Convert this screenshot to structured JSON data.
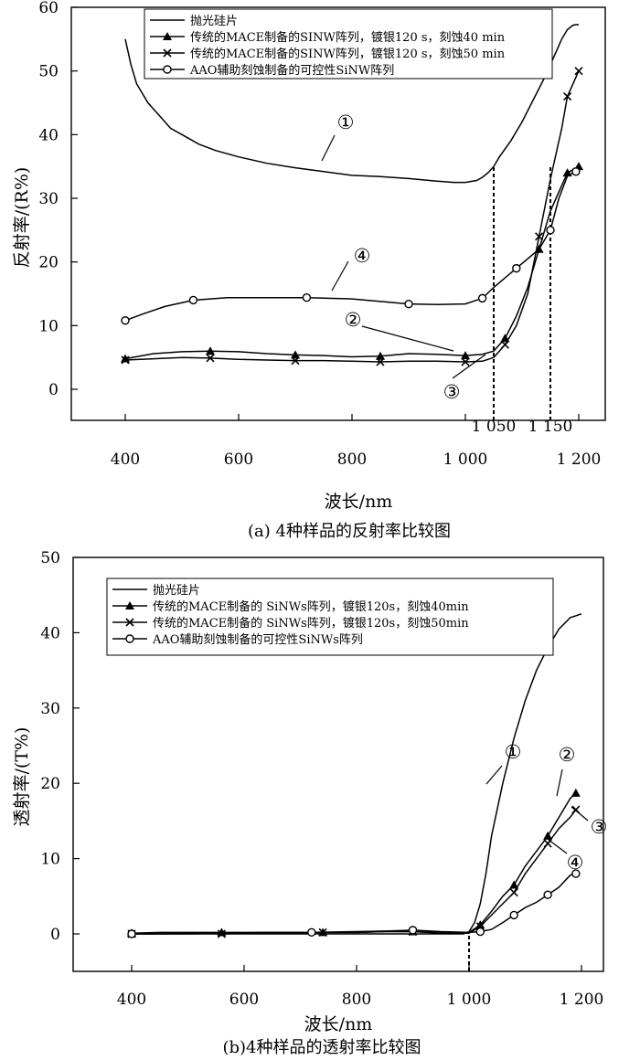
{
  "chart_data": [
    {
      "type": "line",
      "caption": "(a) 4种样品的反射率比较图",
      "xlabel": "波长/nm",
      "ylabel": "反射率/(R%)",
      "xlim": [
        340,
        1215
      ],
      "ylim": [
        -5,
        60
      ],
      "xticks": [
        {
          "v": 400,
          "label": "400"
        },
        {
          "v": 600,
          "label": "600"
        },
        {
          "v": 800,
          "label": "800"
        },
        {
          "v": 1000,
          "label": "1 000"
        },
        {
          "v": 1200,
          "label": "1 200"
        }
      ],
      "xticks_upper": [
        {
          "v": 1050,
          "label": "1 050"
        },
        {
          "v": 1150,
          "label": "1 150"
        }
      ],
      "yticks": [
        0,
        10,
        20,
        30,
        40,
        50,
        60
      ],
      "vlines": [
        1050,
        1150
      ],
      "legend_position": "top",
      "series": [
        {
          "name": "抛光硅片",
          "marker": "none",
          "x": [
            400,
            410,
            420,
            440,
            460,
            480,
            500,
            530,
            560,
            600,
            650,
            700,
            750,
            800,
            850,
            900,
            950,
            980,
            1000,
            1020,
            1030,
            1040,
            1050,
            1060,
            1080,
            1100,
            1120,
            1140,
            1150,
            1160,
            1170,
            1180,
            1190,
            1200
          ],
          "y": [
            55,
            51,
            48,
            45,
            43,
            41,
            40,
            38.5,
            37.5,
            36.5,
            35.5,
            34.8,
            34.2,
            33.6,
            33.4,
            33.1,
            32.7,
            32.5,
            32.5,
            32.8,
            33.3,
            34,
            35,
            36.5,
            39,
            42,
            45.5,
            49,
            51,
            53,
            55,
            56.5,
            57.2,
            57.3
          ]
        },
        {
          "name": "传统的MACE制备的SINW阵列，镀银120 s，刻蚀40 min",
          "marker": "triangle",
          "x": [
            400,
            450,
            500,
            550,
            600,
            650,
            700,
            750,
            800,
            850,
            900,
            950,
            1000,
            1030,
            1050,
            1070,
            1090,
            1110,
            1130,
            1150,
            1170,
            1180,
            1190,
            1200
          ],
          "y": [
            4.8,
            5.6,
            5.9,
            6,
            5.9,
            5.6,
            5.4,
            5.3,
            5.1,
            5.2,
            5.6,
            5.5,
            5.3,
            5.5,
            6,
            8,
            11.5,
            16,
            22,
            28,
            32,
            34,
            34.5,
            35
          ]
        },
        {
          "name": "传统的MACE制备的SINW阵列，镀银120 s，刻蚀50 min",
          "marker": "x",
          "x": [
            400,
            450,
            500,
            550,
            600,
            650,
            700,
            750,
            800,
            850,
            900,
            950,
            1000,
            1030,
            1050,
            1070,
            1090,
            1110,
            1130,
            1150,
            1170,
            1180,
            1190,
            1200
          ],
          "y": [
            4.6,
            4.8,
            5,
            4.9,
            4.7,
            4.6,
            4.5,
            4.5,
            4.4,
            4.3,
            4.4,
            4.4,
            4.3,
            4.4,
            5,
            7,
            10,
            15,
            24,
            33,
            41,
            46,
            48,
            50
          ]
        },
        {
          "name": "AAO辅助刻蚀制备的可控性SiNW阵列",
          "marker": "circle",
          "x": [
            400,
            430,
            470,
            520,
            580,
            650,
            720,
            800,
            850,
            900,
            950,
            1000,
            1030,
            1050,
            1070,
            1090,
            1110,
            1130,
            1150,
            1165,
            1180,
            1195
          ],
          "y": [
            10.8,
            11.8,
            13,
            14,
            14.4,
            14.4,
            14.4,
            14.2,
            13.8,
            13.4,
            13.3,
            13.4,
            14.3,
            16,
            17.5,
            19,
            20.5,
            22,
            25,
            30,
            33.5,
            34.2
          ]
        }
      ]
    },
    {
      "type": "line",
      "caption": "(b)4种样品的透射率比较图",
      "xlabel": "波长/nm",
      "ylabel": "透射率/(T%)",
      "xlim": [
        340,
        1215
      ],
      "ylim": [
        -5,
        50
      ],
      "xticks": [
        {
          "v": 400,
          "label": "400"
        },
        {
          "v": 600,
          "label": "600"
        },
        {
          "v": 800,
          "label": "800"
        },
        {
          "v": 1000,
          "label": "1 000"
        },
        {
          "v": 1200,
          "label": "1 200"
        }
      ],
      "yticks": [
        0,
        10,
        20,
        30,
        40,
        50
      ],
      "vlines": [
        1000
      ],
      "legend_position": "top",
      "series": [
        {
          "name": "抛光硅片",
          "marker": "none",
          "x": [
            400,
            600,
            800,
            950,
            990,
            1000,
            1010,
            1020,
            1030,
            1040,
            1060,
            1080,
            1100,
            1120,
            1140,
            1160,
            1180,
            1200
          ],
          "y": [
            0,
            0,
            0,
            0,
            0,
            0.3,
            1.5,
            4,
            8,
            13,
            20,
            26,
            31,
            35,
            38,
            40.5,
            42,
            42.5
          ]
        },
        {
          "name": "传统的MACE制备的 SiNWs阵列，镀银120s，刻蚀40min",
          "marker": "triangle",
          "x": [
            400,
            450,
            500,
            560,
            620,
            680,
            740,
            800,
            850,
            900,
            950,
            1000,
            1020,
            1040,
            1060,
            1080,
            1100,
            1120,
            1140,
            1160,
            1180,
            1190
          ],
          "y": [
            0.1,
            0.2,
            0.2,
            0.2,
            0.2,
            0.2,
            0.2,
            0.2,
            0.3,
            0.3,
            0.2,
            0.2,
            1.2,
            3,
            5,
            6.5,
            9,
            11,
            13,
            15.5,
            18,
            18.7
          ]
        },
        {
          "name": "传统的MACE制备的 SiNWs阵列，镀银120s，刻蚀50min",
          "marker": "x",
          "x": [
            400,
            450,
            500,
            560,
            620,
            680,
            740,
            800,
            850,
            900,
            950,
            1000,
            1020,
            1040,
            1060,
            1080,
            1100,
            1120,
            1140,
            1160,
            1180,
            1190
          ],
          "y": [
            0,
            0,
            0.1,
            0,
            0.1,
            0.1,
            0.2,
            0.2,
            0.3,
            0.3,
            0.1,
            0.1,
            1,
            2.5,
            4,
            5.5,
            8,
            10,
            12,
            14,
            15.5,
            16.5
          ]
        },
        {
          "name": "AAO辅助刻蚀制备的可控性SiNWs阵列",
          "marker": "circle",
          "x": [
            400,
            500,
            640,
            720,
            800,
            860,
            900,
            950,
            1000,
            1020,
            1040,
            1060,
            1080,
            1100,
            1120,
            1140,
            1160,
            1180,
            1190
          ],
          "y": [
            0,
            0,
            0.2,
            0.2,
            0.3,
            0.4,
            0.5,
            0.3,
            0.2,
            0.3,
            0.6,
            1.5,
            2.5,
            3.5,
            4.2,
            5.2,
            6.2,
            7.8,
            8
          ]
        }
      ]
    }
  ],
  "annotations": [
    {
      "chart": 0,
      "labels": [
        "①",
        "②",
        "③",
        "④"
      ]
    },
    {
      "chart": 1,
      "labels": [
        "①",
        "②",
        "③",
        "④"
      ]
    }
  ]
}
